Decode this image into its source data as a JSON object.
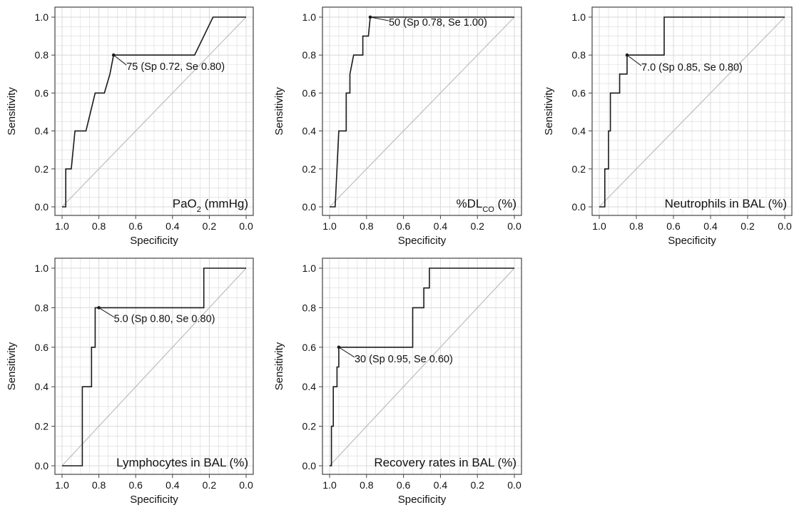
{
  "chart_data": [
    {
      "type": "line",
      "title_main": "PaO",
      "title_sub": "2",
      "title_tail": " (mmHg)",
      "xlabel": "Specificity",
      "ylabel": "Sensitivity",
      "xlim": [
        1.0,
        0.0
      ],
      "ylim": [
        0.0,
        1.0
      ],
      "xticks": [
        "1.0",
        "0.8",
        "0.6",
        "0.4",
        "0.2",
        "0.0"
      ],
      "yticks": [
        "0.0",
        "0.2",
        "0.4",
        "0.6",
        "0.8",
        "1.0"
      ],
      "grid": true,
      "diagonal": true,
      "series": [
        {
          "x": [
            1.0,
            0.99,
            0.98,
            0.98,
            0.95,
            0.95,
            0.93,
            0.93,
            0.87,
            0.87,
            0.82,
            0.82,
            0.77,
            0.77,
            0.74,
            0.74,
            0.72,
            0.72,
            0.28,
            0.18,
            0.18,
            0.0
          ],
          "y": [
            0.0,
            0.0,
            0.0,
            0.2,
            0.2,
            0.2,
            0.4,
            0.4,
            0.4,
            0.4,
            0.6,
            0.6,
            0.6,
            0.6,
            0.7,
            0.7,
            0.8,
            0.8,
            0.8,
            1.0,
            1.0,
            1.0
          ]
        }
      ],
      "cutoff": {
        "x": 0.72,
        "y": 0.8,
        "label": "75 (Sp 0.72, Se 0.80)"
      }
    },
    {
      "type": "line",
      "title_main": "%DL",
      "title_sub": "CO",
      "title_tail": " (%)",
      "xlabel": "Specificity",
      "ylabel": "Sensitivity",
      "xlim": [
        1.0,
        0.0
      ],
      "ylim": [
        0.0,
        1.0
      ],
      "xticks": [
        "1.0",
        "0.8",
        "0.6",
        "0.4",
        "0.2",
        "0.0"
      ],
      "yticks": [
        "0.0",
        "0.2",
        "0.4",
        "0.6",
        "0.8",
        "1.0"
      ],
      "grid": true,
      "diagonal": true,
      "series": [
        {
          "x": [
            1.0,
            0.97,
            0.95,
            0.95,
            0.91,
            0.91,
            0.89,
            0.89,
            0.87,
            0.87,
            0.82,
            0.82,
            0.79,
            0.79,
            0.78,
            0.78,
            0.0
          ],
          "y": [
            0.0,
            0.0,
            0.4,
            0.4,
            0.4,
            0.6,
            0.6,
            0.7,
            0.8,
            0.8,
            0.8,
            0.9,
            0.9,
            0.9,
            1.0,
            1.0,
            1.0
          ]
        }
      ],
      "cutoff": {
        "x": 0.78,
        "y": 1.0,
        "label": "50 (Sp 0.78, Se 1.00)"
      }
    },
    {
      "type": "line",
      "title_main": "Neutrophils in BAL (%)",
      "title_sub": "",
      "title_tail": "",
      "xlabel": "Specificity",
      "ylabel": "Sensitivity",
      "xlim": [
        1.0,
        0.0
      ],
      "ylim": [
        0.0,
        1.0
      ],
      "xticks": [
        "1.0",
        "0.8",
        "0.6",
        "0.4",
        "0.2",
        "0.0"
      ],
      "yticks": [
        "0.0",
        "0.2",
        "0.4",
        "0.6",
        "0.8",
        "1.0"
      ],
      "grid": true,
      "diagonal": true,
      "series": [
        {
          "x": [
            1.0,
            0.97,
            0.97,
            0.95,
            0.95,
            0.94,
            0.94,
            0.93,
            0.93,
            0.89,
            0.89,
            0.85,
            0.85,
            0.65,
            0.65,
            0.63,
            0.63,
            0.0
          ],
          "y": [
            0.0,
            0.0,
            0.2,
            0.2,
            0.4,
            0.4,
            0.6,
            0.6,
            0.6,
            0.6,
            0.7,
            0.7,
            0.8,
            0.8,
            1.0,
            1.0,
            1.0,
            1.0
          ]
        }
      ],
      "cutoff": {
        "x": 0.85,
        "y": 0.8,
        "label": "7.0 (Sp 0.85, Se 0.80)"
      }
    },
    {
      "type": "line",
      "title_main": "Lymphocytes in BAL (%)",
      "title_sub": "",
      "title_tail": "",
      "xlabel": "Specificity",
      "ylabel": "Sensitivity",
      "xlim": [
        1.0,
        0.0
      ],
      "ylim": [
        0.0,
        1.0
      ],
      "xticks": [
        "1.0",
        "0.8",
        "0.6",
        "0.4",
        "0.2",
        "0.0"
      ],
      "yticks": [
        "0.0",
        "0.2",
        "0.4",
        "0.6",
        "0.8",
        "1.0"
      ],
      "grid": true,
      "diagonal": true,
      "series": [
        {
          "x": [
            1.0,
            0.89,
            0.89,
            0.84,
            0.84,
            0.82,
            0.82,
            0.8,
            0.8,
            0.23,
            0.23,
            0.0
          ],
          "y": [
            0.0,
            0.0,
            0.4,
            0.4,
            0.6,
            0.6,
            0.8,
            0.8,
            0.8,
            0.8,
            1.0,
            1.0
          ]
        }
      ],
      "cutoff": {
        "x": 0.8,
        "y": 0.8,
        "label": "5.0 (Sp 0.80, Se 0.80)"
      }
    },
    {
      "type": "line",
      "title_main": "Recovery rates in BAL (%)",
      "title_sub": "",
      "title_tail": "",
      "xlabel": "Specificity",
      "ylabel": "Sensitivity",
      "xlim": [
        1.0,
        0.0
      ],
      "ylim": [
        0.0,
        1.0
      ],
      "xticks": [
        "1.0",
        "0.8",
        "0.6",
        "0.4",
        "0.2",
        "0.0"
      ],
      "yticks": [
        "0.0",
        "0.2",
        "0.4",
        "0.6",
        "0.8",
        "1.0"
      ],
      "grid": true,
      "diagonal": true,
      "series": [
        {
          "x": [
            1.0,
            0.99,
            0.99,
            0.98,
            0.98,
            0.96,
            0.96,
            0.95,
            0.95,
            0.55,
            0.55,
            0.53,
            0.53,
            0.49,
            0.49,
            0.46,
            0.46,
            0.0
          ],
          "y": [
            0.0,
            0.0,
            0.2,
            0.2,
            0.4,
            0.4,
            0.5,
            0.5,
            0.6,
            0.6,
            0.8,
            0.8,
            0.8,
            0.8,
            0.9,
            0.9,
            1.0,
            1.0
          ]
        }
      ],
      "cutoff": {
        "x": 0.95,
        "y": 0.6,
        "label": "30 (Sp 0.95, Se 0.60)"
      }
    }
  ],
  "colors": {
    "curve": "#1a1a1a",
    "grid": "#d9d9d9",
    "diagonal": "#bdbdbd",
    "frame": "#444444"
  }
}
